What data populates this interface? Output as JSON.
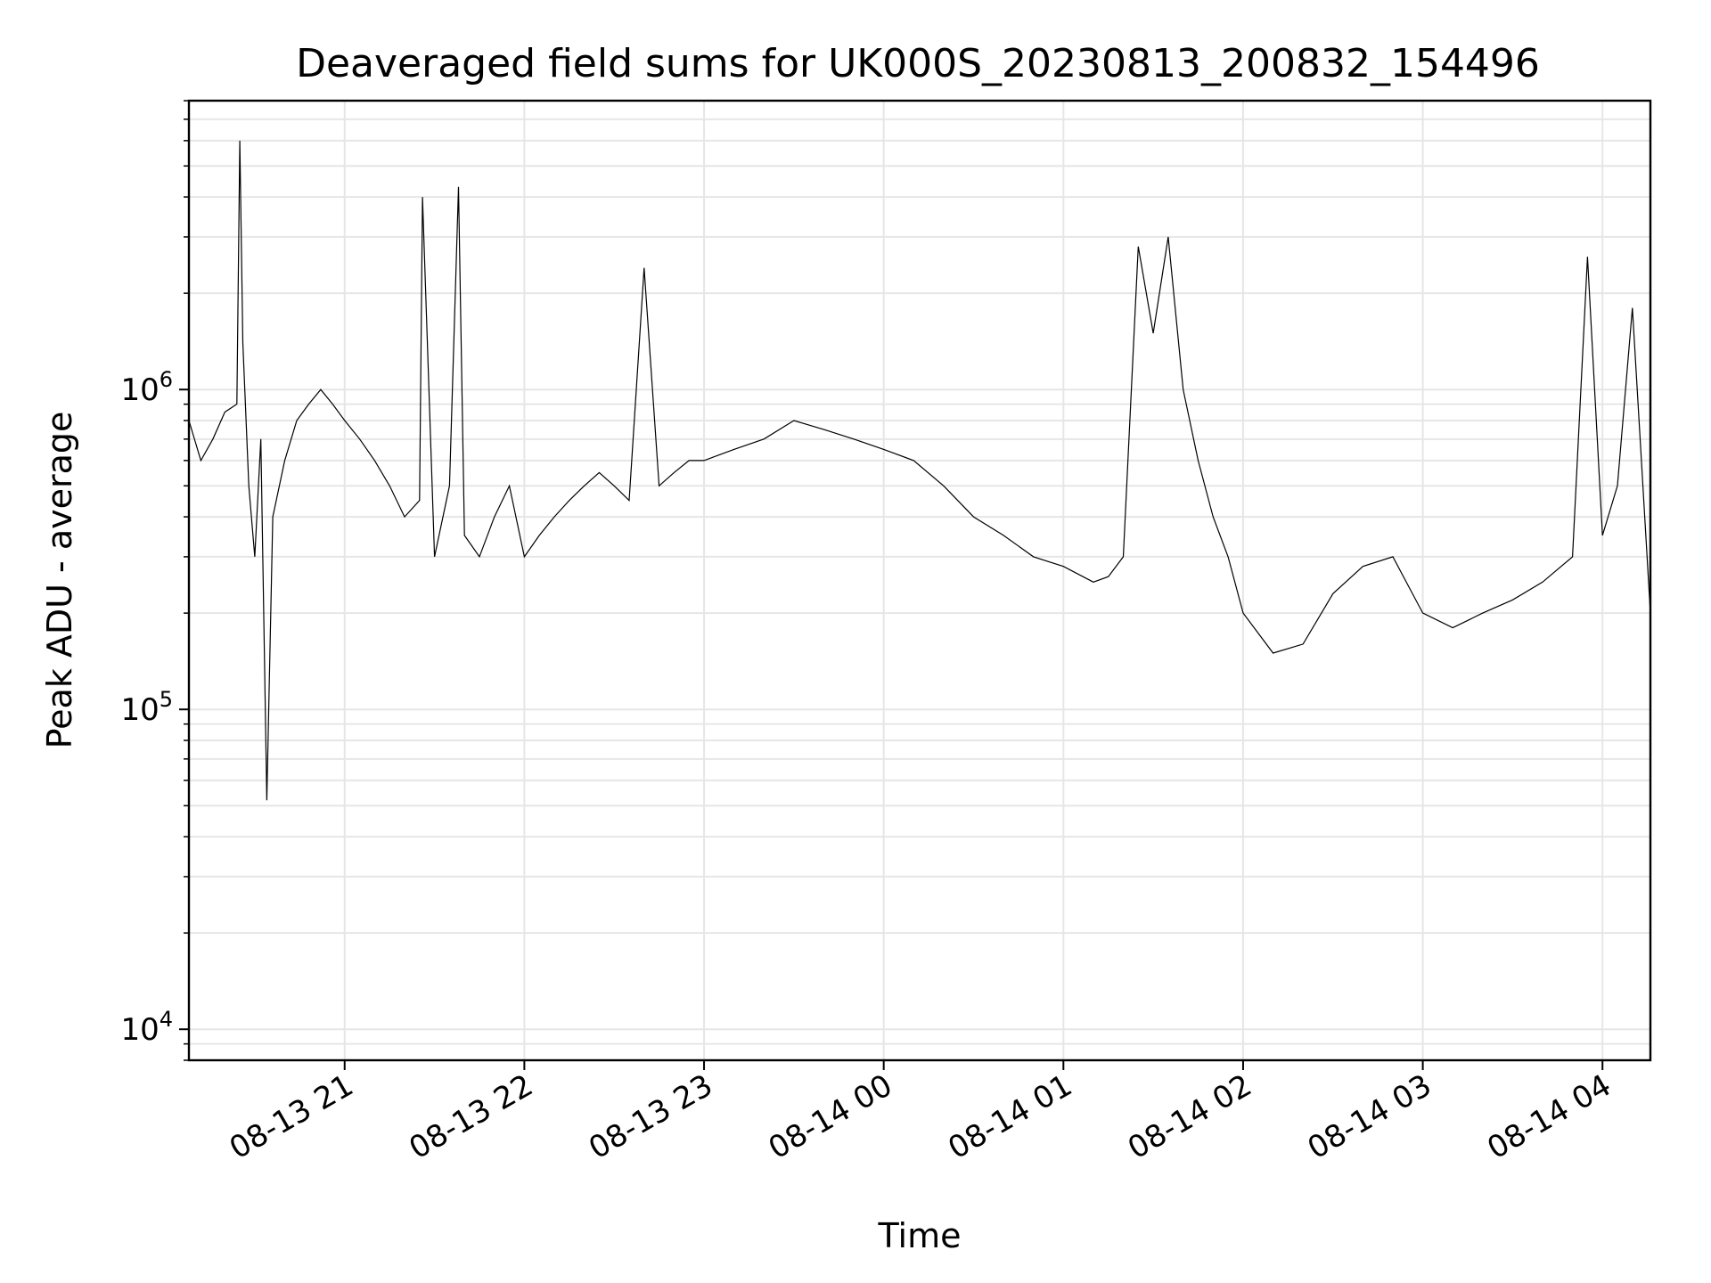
{
  "chart_data": {
    "type": "line",
    "title": "Deaveraged field sums for UK000S_20230813_200832_154496",
    "xlabel": "Time",
    "ylabel": "Peak ADU - average",
    "y_scale": "log",
    "ylim": [
      8000,
      8000000
    ],
    "xlim": [
      "2023-08-13 20:08",
      "2023-08-14 04:16"
    ],
    "grid": true,
    "line_color": "#000000",
    "x_ticks": [
      {
        "t": "2023-08-13 21:00",
        "label": "08-13 21"
      },
      {
        "t": "2023-08-13 22:00",
        "label": "08-13 22"
      },
      {
        "t": "2023-08-13 23:00",
        "label": "08-13 23"
      },
      {
        "t": "2023-08-14 00:00",
        "label": "08-14 00"
      },
      {
        "t": "2023-08-14 01:00",
        "label": "08-14 01"
      },
      {
        "t": "2023-08-14 02:00",
        "label": "08-14 02"
      },
      {
        "t": "2023-08-14 03:00",
        "label": "08-14 03"
      },
      {
        "t": "2023-08-14 04:00",
        "label": "08-14 04"
      }
    ],
    "y_ticks": [
      {
        "value": 10000,
        "base": "10",
        "exp": "4"
      },
      {
        "value": 100000,
        "base": "10",
        "exp": "5"
      },
      {
        "value": 1000000,
        "base": "10",
        "exp": "6"
      }
    ],
    "series": [
      {
        "x": [
          "2023-08-13 20:08",
          "2023-08-13 20:12",
          "2023-08-13 20:16",
          "2023-08-13 20:20",
          "2023-08-13 20:24",
          "2023-08-13 20:25",
          "2023-08-13 20:26",
          "2023-08-13 20:28",
          "2023-08-13 20:30",
          "2023-08-13 20:32",
          "2023-08-13 20:34",
          "2023-08-13 20:36",
          "2023-08-13 20:40",
          "2023-08-13 20:44",
          "2023-08-13 20:48",
          "2023-08-13 20:52",
          "2023-08-13 20:56",
          "2023-08-13 21:00",
          "2023-08-13 21:05",
          "2023-08-13 21:10",
          "2023-08-13 21:15",
          "2023-08-13 21:20",
          "2023-08-13 21:25",
          "2023-08-13 21:26",
          "2023-08-13 21:30",
          "2023-08-13 21:35",
          "2023-08-13 21:38",
          "2023-08-13 21:40",
          "2023-08-13 21:45",
          "2023-08-13 21:50",
          "2023-08-13 21:55",
          "2023-08-13 22:00",
          "2023-08-13 22:05",
          "2023-08-13 22:10",
          "2023-08-13 22:15",
          "2023-08-13 22:20",
          "2023-08-13 22:25",
          "2023-08-13 22:30",
          "2023-08-13 22:35",
          "2023-08-13 22:40",
          "2023-08-13 22:45",
          "2023-08-13 22:50",
          "2023-08-13 22:55",
          "2023-08-13 23:00",
          "2023-08-13 23:10",
          "2023-08-13 23:20",
          "2023-08-13 23:30",
          "2023-08-13 23:40",
          "2023-08-13 23:50",
          "2023-08-14 00:00",
          "2023-08-14 00:10",
          "2023-08-14 00:20",
          "2023-08-14 00:30",
          "2023-08-14 00:40",
          "2023-08-14 00:50",
          "2023-08-14 01:00",
          "2023-08-14 01:10",
          "2023-08-14 01:15",
          "2023-08-14 01:20",
          "2023-08-14 01:25",
          "2023-08-14 01:30",
          "2023-08-14 01:35",
          "2023-08-14 01:40",
          "2023-08-14 01:45",
          "2023-08-14 01:50",
          "2023-08-14 01:55",
          "2023-08-14 02:00",
          "2023-08-14 02:10",
          "2023-08-14 02:20",
          "2023-08-14 02:30",
          "2023-08-14 02:40",
          "2023-08-14 02:50",
          "2023-08-14 03:00",
          "2023-08-14 03:10",
          "2023-08-14 03:20",
          "2023-08-14 03:30",
          "2023-08-14 03:40",
          "2023-08-14 03:50",
          "2023-08-14 03:55",
          "2023-08-14 04:00",
          "2023-08-14 04:05",
          "2023-08-14 04:10",
          "2023-08-14 04:16"
        ],
        "y": [
          800000,
          600000,
          700000,
          850000,
          900000,
          6000000,
          1400000,
          500000,
          300000,
          700000,
          52000,
          400000,
          600000,
          800000,
          900000,
          1000000,
          900000,
          800000,
          700000,
          600000,
          500000,
          400000,
          450000,
          4000000,
          300000,
          500000,
          4300000,
          350000,
          300000,
          400000,
          500000,
          300000,
          350000,
          400000,
          450000,
          500000,
          550000,
          500000,
          450000,
          2400000,
          500000,
          550000,
          600000,
          600000,
          650000,
          700000,
          800000,
          750000,
          700000,
          650000,
          600000,
          500000,
          400000,
          350000,
          300000,
          280000,
          250000,
          260000,
          300000,
          2800000,
          1500000,
          3000000,
          1000000,
          600000,
          400000,
          300000,
          200000,
          150000,
          160000,
          230000,
          280000,
          300000,
          200000,
          180000,
          200000,
          220000,
          250000,
          300000,
          2600000,
          350000,
          500000,
          1800000,
          200000
        ]
      }
    ]
  }
}
